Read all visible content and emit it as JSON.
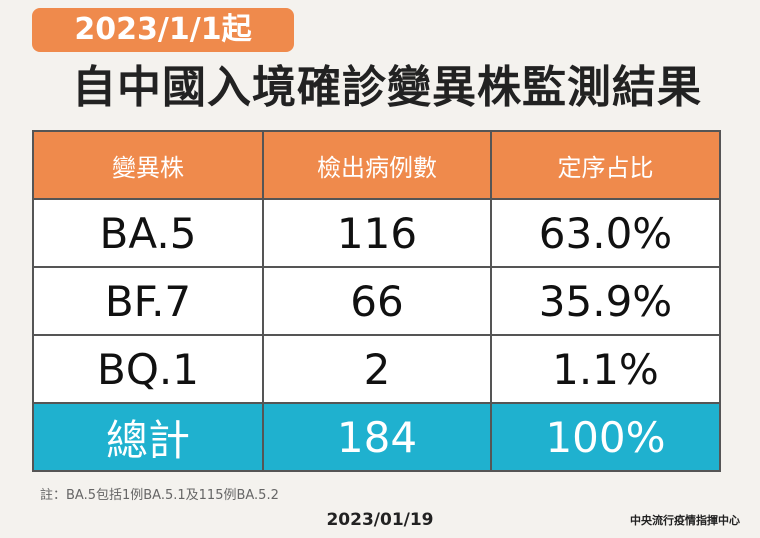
{
  "header": {
    "badge": "2023/1/1起",
    "title": "自中國入境確診變異株監測結果"
  },
  "table": {
    "columns": [
      "變異株",
      "檢出病例數",
      "定序占比"
    ],
    "rows": [
      [
        "BA.5",
        "116",
        "63.0%"
      ],
      [
        "BF.7",
        "66",
        "35.9%"
      ],
      [
        "BQ.1",
        "2",
        "1.1%"
      ]
    ],
    "total": [
      "總計",
      "184",
      "100%"
    ]
  },
  "footer": {
    "note": "註：BA.5包括1例BA.5.1及115例BA.5.2",
    "date": "2023/01/19",
    "source": "中央流行疫情指揮中心"
  }
}
